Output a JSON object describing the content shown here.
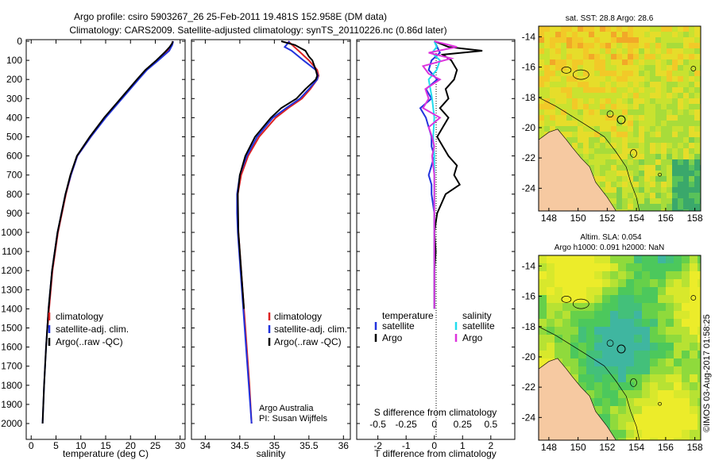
{
  "title": {
    "line1": "Argo profile: csiro 5903267_26 25-Feb-2011 19.481S 152.958E (DM data)",
    "line2": "Climatology: CARS2009. Satellite-adjusted climatology: synTS_20110226.nc (0.86d later)"
  },
  "colors": {
    "climatology": "#dd2222",
    "satellite": "#2233dd",
    "argo": "#000000",
    "sal_satellite": "#22ddee",
    "sal_argo": "#dd33dd",
    "land": "#f6c9a1"
  },
  "depth_ticks": [
    "0",
    "100",
    "200",
    "300",
    "400",
    "500",
    "600",
    "700",
    "800",
    "900",
    "1000",
    "1100",
    "1200",
    "1300",
    "1400",
    "1500",
    "1600",
    "1700",
    "1800",
    "1900",
    "2000"
  ],
  "chart_data": [
    {
      "type": "line",
      "name": "temperature",
      "xlabel": "temperature (deg C)",
      "xlim": [
        -1,
        31
      ],
      "ylim": [
        0,
        2100
      ],
      "xticks": [
        "0",
        "5",
        "10",
        "15",
        "20",
        "25",
        "30"
      ],
      "legend": [
        "climatology",
        "satellite-adj. clim.",
        "Argo(..raw -QC)"
      ],
      "legend_position": "bottom-right",
      "series": [
        {
          "name": "climatology",
          "depth": [
            0,
            20,
            50,
            100,
            150,
            200,
            300,
            400,
            500,
            600,
            700,
            800,
            1000,
            1200,
            1400,
            1500
          ],
          "values": [
            28.6,
            28.3,
            27.6,
            25.5,
            23.2,
            21.5,
            18.2,
            14.9,
            12.0,
            9.3,
            8.0,
            7.0,
            5.4,
            4.3,
            3.6,
            3.3
          ]
        },
        {
          "name": "satellite",
          "depth": [
            0,
            20,
            50,
            100,
            150,
            200,
            300,
            400,
            500,
            600,
            700,
            800,
            1000,
            1200,
            1400,
            1600,
            1800,
            2000
          ],
          "values": [
            28.6,
            28.4,
            27.8,
            25.6,
            23.3,
            21.6,
            18.3,
            15.0,
            12.0,
            9.3,
            8.0,
            6.9,
            5.3,
            4.2,
            3.5,
            3.0,
            2.6,
            2.3
          ]
        },
        {
          "name": "Argo",
          "depth": [
            0,
            10,
            30,
            60,
            100,
            150,
            200,
            300,
            400,
            500,
            600,
            700,
            800,
            1000,
            1200,
            1400,
            1600,
            1800,
            2000
          ],
          "values": [
            28.5,
            28.4,
            27.9,
            26.8,
            25.2,
            23.0,
            21.3,
            18.0,
            14.7,
            11.8,
            9.2,
            7.9,
            6.9,
            5.3,
            4.2,
            3.5,
            3.0,
            2.6,
            2.3
          ]
        }
      ]
    },
    {
      "type": "line",
      "name": "salinity",
      "xlabel": "salinity",
      "xlim": [
        33.8,
        36.1
      ],
      "ylim": [
        0,
        2100
      ],
      "xticks": [
        "34",
        "34.5",
        "35",
        "35.5",
        "36"
      ],
      "legend": [
        "climatology",
        "satellite-adj. clim.",
        "Argo(..raw -QC)"
      ],
      "legend_position": "bottom-right",
      "series": [
        {
          "name": "climatology",
          "depth": [
            0,
            50,
            100,
            150,
            180,
            200,
            250,
            300,
            350,
            400,
            500,
            600,
            700,
            800,
            900,
            1000,
            1200,
            1400,
            1600,
            1800,
            2000
          ],
          "values": [
            35.2,
            35.35,
            35.5,
            35.62,
            35.64,
            35.62,
            35.52,
            35.4,
            35.2,
            35.02,
            34.78,
            34.62,
            34.52,
            34.47,
            34.47,
            34.48,
            34.52,
            34.56,
            34.6,
            34.64,
            34.67
          ]
        },
        {
          "name": "satellite",
          "depth": [
            0,
            30,
            50,
            100,
            150,
            180,
            200,
            250,
            300,
            350,
            400,
            500,
            600,
            700,
            800,
            900,
            1000,
            1200,
            1400,
            1600,
            1800,
            2000
          ],
          "values": [
            35.22,
            35.15,
            35.25,
            35.42,
            35.6,
            35.63,
            35.62,
            35.5,
            35.37,
            35.17,
            34.98,
            34.75,
            34.6,
            34.5,
            34.46,
            34.46,
            34.47,
            34.51,
            34.55,
            34.59,
            34.63,
            34.67
          ]
        },
        {
          "name": "Argo",
          "depth": [
            0,
            20,
            50,
            80,
            100,
            150,
            180,
            200,
            250,
            300,
            350,
            400,
            500,
            600,
            700,
            800,
            1000,
            1200,
            1400
          ],
          "values": [
            35.1,
            35.3,
            35.45,
            35.5,
            35.55,
            35.6,
            35.62,
            35.6,
            35.45,
            35.32,
            35.1,
            34.95,
            34.72,
            34.58,
            34.5,
            34.47,
            34.48,
            34.52,
            34.56
          ]
        }
      ],
      "annotation": [
        "Argo Australia",
        "PI: Susan Wijffels"
      ]
    },
    {
      "type": "line",
      "name": "difference",
      "xlabel": "T difference from climatology",
      "xlabel_top": "S difference from climatology",
      "xlim": [
        -2.75,
        2.85
      ],
      "ylim": [
        0,
        2100
      ],
      "xticks": [
        "-2",
        "-1",
        "0",
        "1",
        "2"
      ],
      "xticks_top": [
        "-0.5",
        "-0.25",
        "0",
        "0.25",
        "0.5"
      ],
      "legend_temperature_heading": "temperature",
      "legend_salinity_heading": "salinity",
      "legend_temperature": [
        "satellite",
        "Argo"
      ],
      "legend_salinity": [
        "satellite",
        "Argo"
      ],
      "series": [
        {
          "name": "T satellite",
          "depth": [
            0,
            30,
            60,
            100,
            150,
            200,
            250,
            300,
            350,
            400,
            450,
            500,
            550,
            600,
            650,
            700,
            750,
            800,
            900,
            1000,
            1200,
            1400
          ],
          "values": [
            0,
            0.1,
            0.2,
            -0.1,
            -0.2,
            0.1,
            -0.3,
            -0.1,
            -0.5,
            -0.3,
            -0.2,
            -0.1,
            -0.1,
            0.0,
            -0.1,
            -0.2,
            -0.1,
            -0.1,
            0,
            0,
            0,
            0
          ]
        },
        {
          "name": "T Argo",
          "depth": [
            0,
            30,
            50,
            70,
            100,
            150,
            200,
            250,
            300,
            350,
            400,
            450,
            500,
            550,
            600,
            650,
            700,
            750,
            800,
            900,
            1000,
            1100,
            1200,
            1300,
            1400
          ],
          "values": [
            0,
            0.5,
            1.7,
            0.3,
            0.6,
            0.8,
            0.7,
            0.4,
            0.5,
            0.2,
            0.5,
            0.3,
            0.1,
            0.3,
            0.5,
            0.8,
            0.7,
            0.9,
            0.4,
            0.1,
            0.0,
            0.05,
            0.0,
            0.0,
            0.0
          ]
        },
        {
          "name": "S satellite",
          "depth": [
            0,
            30,
            60,
            100,
            150,
            200,
            300,
            400,
            500,
            600,
            700,
            800,
            1000,
            1200,
            1400
          ],
          "values": [
            0,
            0.02,
            -0.02,
            0.05,
            0.02,
            -0.05,
            -0.02,
            0.0,
            -0.01,
            0.0,
            0.0,
            0.0,
            0.0,
            0.0,
            0.0
          ]
        },
        {
          "name": "S Argo",
          "depth": [
            0,
            30,
            60,
            90,
            130,
            170,
            200,
            250,
            300,
            350,
            400,
            450,
            500,
            550,
            600,
            700,
            800,
            900,
            1000,
            1200,
            1400
          ],
          "values": [
            0,
            0.2,
            -0.05,
            0.15,
            -0.1,
            -0.05,
            0.05,
            -0.08,
            -0.05,
            -0.1,
            0.05,
            -0.05,
            -0.02,
            0.0,
            -0.02,
            0.0,
            0.0,
            0.0,
            0.0,
            0.0,
            0.0
          ]
        }
      ]
    },
    {
      "type": "heatmap",
      "name": "sst_map",
      "title": "sat. SST: 28.8 Argo: 28.6",
      "xticks": [
        "148",
        "150",
        "152",
        "154",
        "156",
        "158"
      ],
      "yticks": [
        "-14",
        "-16",
        "-18",
        "-20",
        "-22",
        "-24"
      ],
      "xlim": [
        147.3,
        158.4
      ],
      "ylim": [
        -25.5,
        -13.3
      ],
      "argo_position": [
        152.958,
        -19.481
      ]
    },
    {
      "type": "heatmap",
      "name": "sla_map",
      "title": "Altim. SLA: 0.054",
      "subtitle": "Argo h1000: 0.091 h2000: NaN",
      "xticks": [
        "148",
        "150",
        "152",
        "154",
        "156",
        "158"
      ],
      "yticks": [
        "-14",
        "-16",
        "-18",
        "-20",
        "-22",
        "-24"
      ],
      "xlim": [
        147.3,
        158.4
      ],
      "ylim": [
        -25.5,
        -13.3
      ],
      "argo_position": [
        152.958,
        -19.481
      ]
    }
  ],
  "credit": "©IMOS 03-Aug-2017 01:58:25"
}
